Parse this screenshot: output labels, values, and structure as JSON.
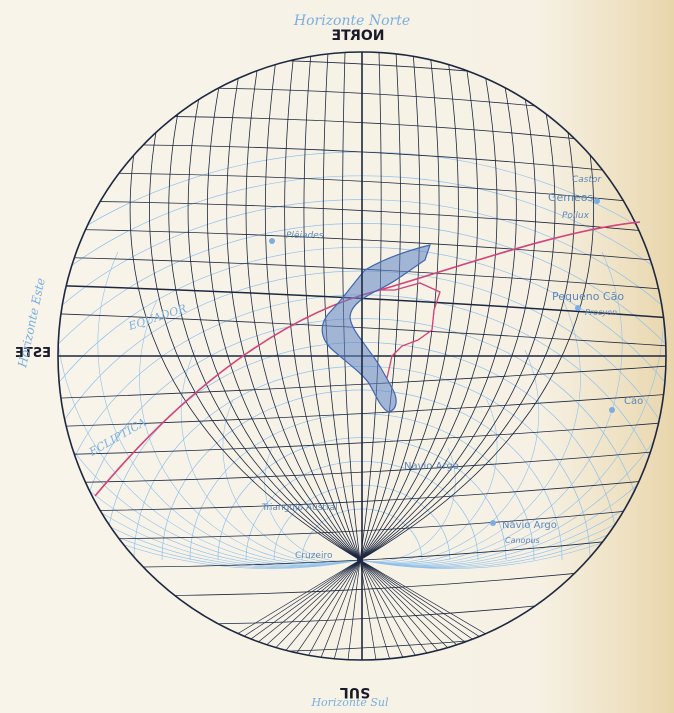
{
  "map": {
    "horizon_north": "Horizonte Norte",
    "horizon_east": "Horizonte Este",
    "horizon_south": "Horizonte Sul",
    "norte": "NORTE",
    "este": "ESTE",
    "sul": "SUL",
    "equador": "EQUADOR",
    "ecliptica": "ECLIPTICA",
    "stars": {
      "castor": "Castor",
      "gemeos": "Gemeos",
      "pollux": "Pollux",
      "procyon_cao": "Pequeno Cão",
      "procyon": "Procyon",
      "cao": "Cão",
      "nd1": "Navio Argo",
      "nd2": "Navio Argo",
      "canopus": "Canopus",
      "triangulo": "Triangulo Austral",
      "cruzeiro": "Cruzeiro",
      "plêiades": "Plêiades"
    },
    "scale_ticks": [
      "5",
      "10",
      "15",
      "20",
      "25",
      "30",
      "35"
    ],
    "colors": {
      "dark_line": "#1d2740",
      "blue_line": "#8fc0ec",
      "ecliptic": "#d4427a",
      "coast": "#3f67b1"
    }
  }
}
